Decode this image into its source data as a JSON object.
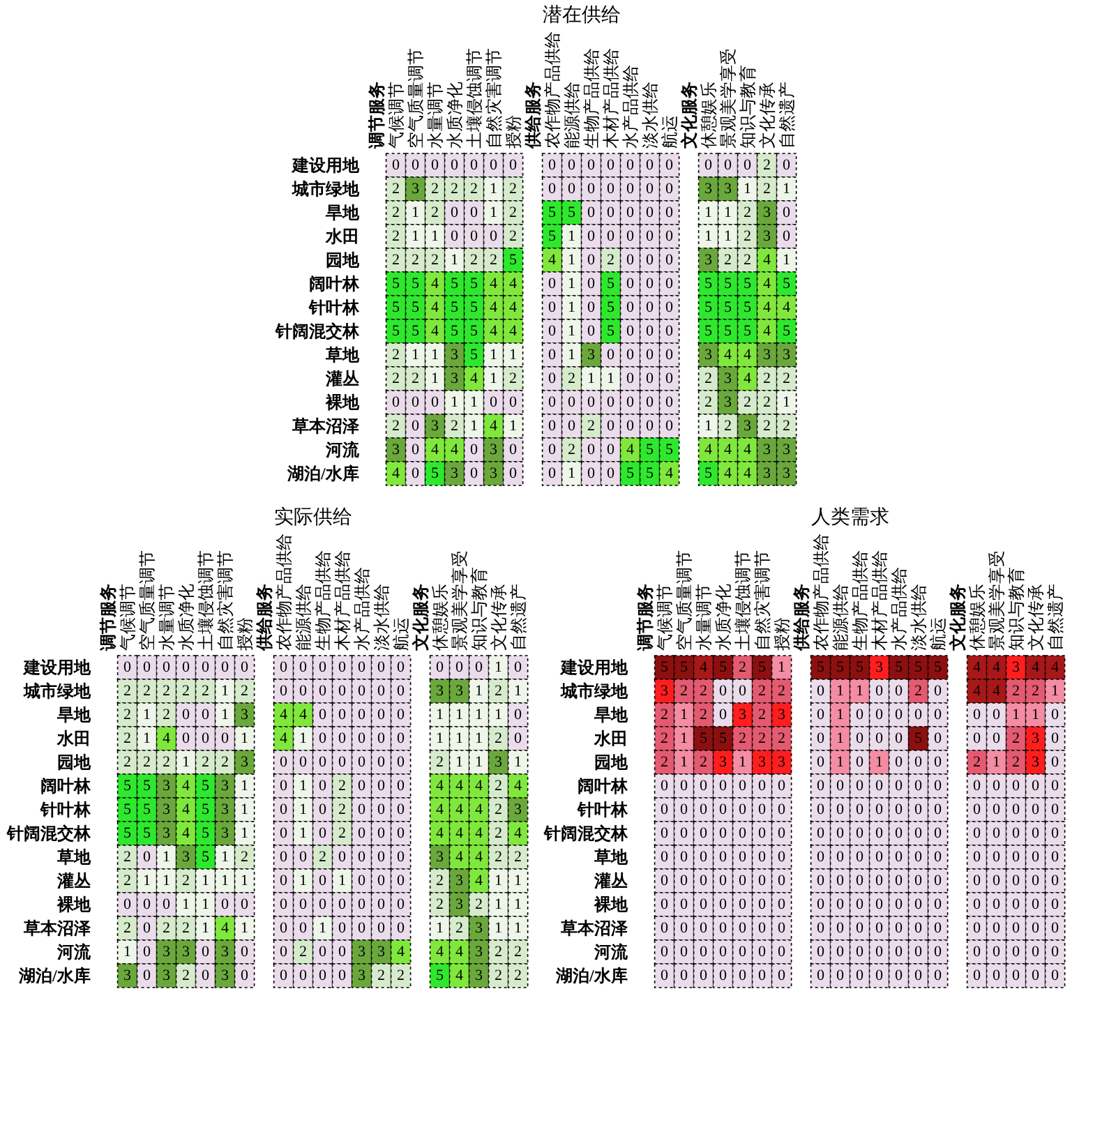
{
  "chart_data": [
    {
      "type": "heatmap",
      "title": "潜在供给",
      "data_labels": true,
      "categories": [
        "调节服务",
        "气候调节",
        "空气质量调节",
        "水量调节",
        "水质净化",
        "土壤侵蚀调节",
        "自然灾害调节",
        "授粉",
        "供给服务",
        "农作物产品供给",
        "能源供给",
        "生物产品供给",
        "木材产品供给",
        "水产品供给",
        "淡水供给",
        "航运",
        "文化服务",
        "休憩娱乐",
        "景观美学享受",
        "知识与教育",
        "文化传承",
        "自然遗产"
      ],
      "y_categories": [
        "建设用地",
        "城市绿地",
        "旱地",
        "水田",
        "园地",
        "阔叶林",
        "针叶林",
        "针阔混交林",
        "草地",
        "灌丛",
        "裸地",
        "草本沼泽",
        "河流",
        "湖泊/水库"
      ],
      "colors": [
        "#eadcea",
        "#eef6ea",
        "#d6ebcc",
        "#6aa83c",
        "#80e83c",
        "#2ee82e"
      ],
      "cells": [
        [
          null,
          0,
          0,
          0,
          0,
          0,
          0,
          0,
          null,
          0,
          0,
          0,
          0,
          0,
          0,
          0,
          null,
          0,
          0,
          0,
          2,
          0
        ],
        [
          null,
          2,
          3,
          2,
          2,
          2,
          1,
          2,
          null,
          0,
          0,
          0,
          0,
          0,
          0,
          0,
          null,
          3,
          3,
          1,
          2,
          1
        ],
        [
          null,
          2,
          1,
          2,
          0,
          0,
          1,
          2,
          null,
          5,
          5,
          0,
          0,
          0,
          0,
          0,
          null,
          1,
          1,
          2,
          3,
          0
        ],
        [
          null,
          2,
          1,
          1,
          0,
          0,
          0,
          2,
          null,
          5,
          1,
          0,
          0,
          0,
          0,
          0,
          null,
          1,
          1,
          2,
          3,
          0
        ],
        [
          null,
          2,
          2,
          2,
          1,
          2,
          2,
          5,
          null,
          4,
          1,
          0,
          2,
          0,
          0,
          0,
          null,
          3,
          2,
          2,
          4,
          1
        ],
        [
          null,
          5,
          5,
          4,
          5,
          5,
          4,
          4,
          null,
          0,
          1,
          0,
          5,
          0,
          0,
          0,
          null,
          5,
          5,
          5,
          4,
          5
        ],
        [
          null,
          5,
          5,
          4,
          5,
          5,
          4,
          4,
          null,
          0,
          1,
          0,
          5,
          0,
          0,
          0,
          null,
          5,
          5,
          5,
          4,
          4
        ],
        [
          null,
          5,
          5,
          4,
          5,
          5,
          4,
          4,
          null,
          0,
          1,
          0,
          5,
          0,
          0,
          0,
          null,
          5,
          5,
          5,
          4,
          5
        ],
        [
          null,
          2,
          1,
          1,
          3,
          5,
          1,
          1,
          null,
          0,
          1,
          3,
          0,
          0,
          0,
          0,
          null,
          3,
          4,
          4,
          3,
          3
        ],
        [
          null,
          2,
          2,
          1,
          3,
          4,
          1,
          2,
          null,
          0,
          2,
          1,
          1,
          0,
          0,
          0,
          null,
          2,
          3,
          4,
          2,
          2
        ],
        [
          null,
          0,
          0,
          0,
          1,
          1,
          0,
          0,
          null,
          0,
          0,
          0,
          0,
          0,
          0,
          0,
          null,
          2,
          3,
          2,
          2,
          1
        ],
        [
          null,
          2,
          0,
          3,
          2,
          1,
          4,
          1,
          null,
          0,
          0,
          2,
          0,
          0,
          0,
          0,
          null,
          1,
          2,
          3,
          2,
          2
        ],
        [
          null,
          3,
          0,
          4,
          4,
          0,
          3,
          0,
          null,
          0,
          2,
          0,
          0,
          4,
          5,
          5,
          null,
          4,
          4,
          4,
          3,
          3
        ],
        [
          null,
          4,
          0,
          5,
          3,
          0,
          3,
          0,
          null,
          0,
          1,
          0,
          0,
          5,
          5,
          4,
          null,
          5,
          4,
          4,
          3,
          3
        ]
      ]
    },
    {
      "type": "heatmap",
      "title": "实际供给",
      "data_labels": true,
      "categories": [
        "调节服务",
        "气候调节",
        "空气质量调节",
        "水量调节",
        "水质净化",
        "土壤侵蚀调节",
        "自然灾害调节",
        "授粉",
        "供给服务",
        "农作物产品供给",
        "能源供给",
        "生物产品供给",
        "木材产品供给",
        "水产品供给",
        "淡水供给",
        "航运",
        "文化服务",
        "休憩娱乐",
        "景观美学享受",
        "知识与教育",
        "文化传承",
        "自然遗产"
      ],
      "y_categories": [
        "建设用地",
        "城市绿地",
        "旱地",
        "水田",
        "园地",
        "阔叶林",
        "针叶林",
        "针阔混交林",
        "草地",
        "灌丛",
        "裸地",
        "草本沼泽",
        "河流",
        "湖泊/水库"
      ],
      "colors": [
        "#eadcea",
        "#eef6ea",
        "#d6ebcc",
        "#6aa83c",
        "#80e83c",
        "#2ee82e"
      ],
      "cells": [
        [
          null,
          0,
          0,
          0,
          0,
          0,
          0,
          0,
          null,
          0,
          0,
          0,
          0,
          0,
          0,
          0,
          null,
          0,
          0,
          0,
          1,
          0
        ],
        [
          null,
          2,
          2,
          2,
          2,
          2,
          1,
          2,
          null,
          0,
          0,
          0,
          0,
          0,
          0,
          0,
          null,
          3,
          3,
          1,
          2,
          1
        ],
        [
          null,
          2,
          1,
          2,
          0,
          0,
          1,
          3,
          null,
          4,
          4,
          0,
          0,
          0,
          0,
          0,
          null,
          1,
          1,
          1,
          1,
          0
        ],
        [
          null,
          2,
          1,
          4,
          0,
          0,
          0,
          1,
          null,
          4,
          1,
          0,
          0,
          0,
          0,
          0,
          null,
          1,
          1,
          1,
          2,
          0
        ],
        [
          null,
          2,
          2,
          2,
          1,
          2,
          2,
          3,
          null,
          0,
          0,
          0,
          0,
          0,
          0,
          0,
          null,
          2,
          1,
          1,
          3,
          1
        ],
        [
          null,
          5,
          5,
          3,
          4,
          5,
          3,
          1,
          null,
          0,
          1,
          0,
          2,
          0,
          0,
          0,
          null,
          4,
          4,
          4,
          2,
          4
        ],
        [
          null,
          5,
          5,
          3,
          4,
          5,
          3,
          1,
          null,
          0,
          1,
          0,
          2,
          0,
          0,
          0,
          null,
          4,
          4,
          4,
          2,
          3
        ],
        [
          null,
          5,
          5,
          3,
          4,
          5,
          3,
          1,
          null,
          0,
          1,
          0,
          2,
          0,
          0,
          0,
          null,
          4,
          4,
          4,
          2,
          4
        ],
        [
          null,
          2,
          0,
          1,
          3,
          5,
          1,
          2,
          null,
          0,
          0,
          2,
          0,
          0,
          0,
          0,
          null,
          3,
          4,
          4,
          2,
          2
        ],
        [
          null,
          2,
          1,
          1,
          2,
          1,
          1,
          1,
          null,
          0,
          1,
          0,
          1,
          0,
          0,
          0,
          null,
          2,
          3,
          4,
          1,
          1
        ],
        [
          null,
          0,
          0,
          0,
          1,
          1,
          0,
          0,
          null,
          0,
          0,
          0,
          0,
          0,
          0,
          0,
          null,
          2,
          3,
          2,
          1,
          1
        ],
        [
          null,
          2,
          0,
          2,
          2,
          1,
          4,
          1,
          null,
          0,
          0,
          1,
          0,
          0,
          0,
          0,
          null,
          1,
          2,
          3,
          1,
          1
        ],
        [
          null,
          1,
          0,
          3,
          3,
          0,
          3,
          0,
          null,
          0,
          2,
          0,
          0,
          3,
          3,
          4,
          null,
          4,
          4,
          3,
          2,
          2
        ],
        [
          null,
          3,
          0,
          3,
          2,
          0,
          3,
          0,
          null,
          0,
          0,
          0,
          0,
          3,
          2,
          2,
          null,
          5,
          4,
          3,
          2,
          2
        ]
      ]
    },
    {
      "type": "heatmap",
      "title": "人类需求",
      "data_labels": true,
      "categories": [
        "调节服务",
        "气候调节",
        "空气质量调节",
        "水量调节",
        "水质净化",
        "土壤侵蚀调节",
        "自然灾害调节",
        "授粉",
        "供给服务",
        "农作物产品供给",
        "能源供给",
        "生物产品供给",
        "木材产品供给",
        "水产品供给",
        "淡水供给",
        "航运",
        "文化服务",
        "休憩娱乐",
        "景观美学享受",
        "知识与教育",
        "文化传承",
        "自然遗产"
      ],
      "y_categories": [
        "建设用地",
        "城市绿地",
        "旱地",
        "水田",
        "园地",
        "阔叶林",
        "针叶林",
        "针阔混交林",
        "草地",
        "灌丛",
        "裸地",
        "草本沼泽",
        "河流",
        "湖泊/水库"
      ],
      "colors": [
        "#eadcea",
        "#f48ca3",
        "#e45a70",
        "#ff1e1e",
        "#a81818",
        "#8c1010"
      ],
      "cells": [
        [
          null,
          5,
          5,
          4,
          5,
          2,
          5,
          1,
          null,
          5,
          5,
          5,
          3,
          5,
          5,
          5,
          null,
          4,
          4,
          3,
          4,
          4
        ],
        [
          null,
          3,
          2,
          2,
          0,
          0,
          2,
          2,
          null,
          0,
          1,
          1,
          0,
          0,
          2,
          0,
          null,
          4,
          4,
          2,
          2,
          1
        ],
        [
          null,
          2,
          1,
          2,
          0,
          3,
          2,
          3,
          null,
          0,
          1,
          0,
          0,
          0,
          0,
          0,
          null,
          0,
          0,
          1,
          1,
          0
        ],
        [
          null,
          2,
          1,
          5,
          5,
          2,
          2,
          2,
          null,
          0,
          1,
          0,
          0,
          0,
          5,
          0,
          null,
          0,
          0,
          2,
          3,
          0
        ],
        [
          null,
          2,
          1,
          2,
          3,
          1,
          3,
          3,
          null,
          0,
          1,
          0,
          1,
          0,
          0,
          0,
          null,
          2,
          1,
          2,
          3,
          0
        ],
        [
          null,
          0,
          0,
          0,
          0,
          0,
          0,
          0,
          null,
          0,
          0,
          0,
          0,
          0,
          0,
          0,
          null,
          0,
          0,
          0,
          0,
          0
        ],
        [
          null,
          0,
          0,
          0,
          0,
          0,
          0,
          0,
          null,
          0,
          0,
          0,
          0,
          0,
          0,
          0,
          null,
          0,
          0,
          0,
          0,
          0
        ],
        [
          null,
          0,
          0,
          0,
          0,
          0,
          0,
          0,
          null,
          0,
          0,
          0,
          0,
          0,
          0,
          0,
          null,
          0,
          0,
          0,
          0,
          0
        ],
        [
          null,
          0,
          0,
          0,
          0,
          0,
          0,
          0,
          null,
          0,
          0,
          0,
          0,
          0,
          0,
          0,
          null,
          0,
          0,
          0,
          0,
          0
        ],
        [
          null,
          0,
          0,
          0,
          0,
          0,
          0,
          0,
          null,
          0,
          0,
          0,
          0,
          0,
          0,
          0,
          null,
          0,
          0,
          0,
          0,
          0
        ],
        [
          null,
          0,
          0,
          0,
          0,
          0,
          0,
          0,
          null,
          0,
          0,
          0,
          0,
          0,
          0,
          0,
          null,
          0,
          0,
          0,
          0,
          0
        ],
        [
          null,
          0,
          0,
          0,
          0,
          0,
          0,
          0,
          null,
          0,
          0,
          0,
          0,
          0,
          0,
          0,
          null,
          0,
          0,
          0,
          0,
          0
        ],
        [
          null,
          0,
          0,
          0,
          0,
          0,
          0,
          0,
          null,
          0,
          0,
          0,
          0,
          0,
          0,
          0,
          null,
          0,
          0,
          0,
          0,
          0
        ],
        [
          null,
          0,
          0,
          0,
          0,
          0,
          0,
          0,
          null,
          0,
          0,
          0,
          0,
          0,
          0,
          0,
          null,
          0,
          0,
          0,
          0,
          0
        ]
      ]
    }
  ]
}
